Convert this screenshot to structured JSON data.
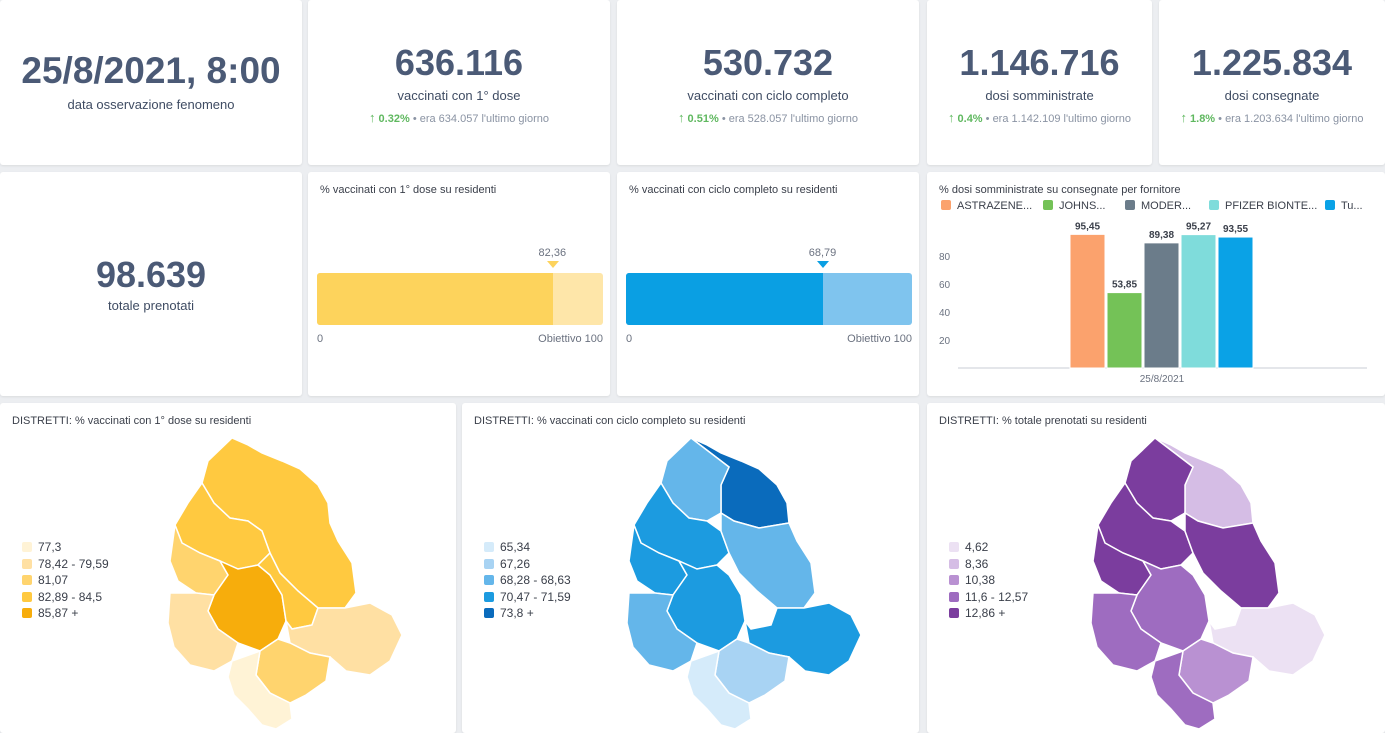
{
  "kpis": {
    "date": {
      "value": "25/8/2021, 8:00",
      "label": "data osservazione fenomeno"
    },
    "first_dose": {
      "value": "636.116",
      "label": "vaccinati con 1° dose",
      "pct": "0.32%",
      "prev": "• era 634.057  l'ultimo giorno"
    },
    "full_cycle": {
      "value": "530.732",
      "label": "vaccinati con ciclo completo",
      "pct": "0.51%",
      "prev": "• era 528.057  l'ultimo giorno"
    },
    "administered": {
      "value": "1.146.716",
      "label": "dosi somministrate",
      "pct": "0.4%",
      "prev": "• era 1.142.109  l'ultimo giorno"
    },
    "delivered": {
      "value": "1.225.834",
      "label": "dosi consegnate",
      "pct": "1.8%",
      "prev": "• era 1.203.634  l'ultimo giorno"
    },
    "bookings": {
      "value": "98.639",
      "label": "totale prenotati"
    }
  },
  "progress": {
    "first_dose": {
      "title": "% vaccinati con 1° dose su residenti",
      "value": 82.36,
      "value_label": "82,36",
      "min_label": "0",
      "goal_label": "Obiettivo 100",
      "color_fill": "#fdd35c",
      "color_bg": "#fee6a9"
    },
    "full_cycle": {
      "title": "% vaccinati con ciclo completo su residenti",
      "value": 68.79,
      "value_label": "68,79",
      "min_label": "0",
      "goal_label": "Obiettivo 100",
      "color_fill": "#0a9fe3",
      "color_bg": "#7fc4ee"
    }
  },
  "chart_data": {
    "type": "bar",
    "title": "% dosi somministrate su consegnate per fornitore",
    "categories": [
      "25/8/2021"
    ],
    "series": [
      {
        "name": "ASTRAZENE...",
        "values": [
          95.45
        ],
        "label": "95,45",
        "color": "#fba26d"
      },
      {
        "name": "JOHNS...",
        "values": [
          53.85
        ],
        "label": "53,85",
        "color": "#74c257"
      },
      {
        "name": "MODER...",
        "values": [
          89.38
        ],
        "label": "89,38",
        "color": "#6b7c8a"
      },
      {
        "name": "PFIZER BIONTE...",
        "values": [
          95.27
        ],
        "label": "95,27",
        "color": "#7fdcdb"
      },
      {
        "name": "Tu...",
        "values": [
          93.55
        ],
        "label": "93,55",
        "color": "#0aa2e6"
      }
    ],
    "yticks": [
      "20",
      "40",
      "60",
      "80"
    ],
    "ylim": [
      0,
      100
    ],
    "legend": "top",
    "grid": false
  },
  "maps": {
    "first_dose": {
      "title": "DISTRETTI: % vaccinati con 1° dose su residenti",
      "legend": [
        {
          "label": "77,3",
          "color": "#fff3d6"
        },
        {
          "label": "78,42 - 79,59",
          "color": "#ffe0a3"
        },
        {
          "label": "81,07",
          "color": "#ffd46e"
        },
        {
          "label": "82,89 - 84,5",
          "color": "#ffc940"
        },
        {
          "label": "85,87 +",
          "color": "#f7ad0c"
        }
      ]
    },
    "full_cycle": {
      "title": "DISTRETTI: % vaccinati con ciclo completo su residenti",
      "legend": [
        {
          "label": "65,34",
          "color": "#d5ebfa"
        },
        {
          "label": "67,26",
          "color": "#a8d3f3"
        },
        {
          "label": "68,28 - 68,63",
          "color": "#64b6ea"
        },
        {
          "label": "70,47 - 71,59",
          "color": "#1c9be0"
        },
        {
          "label": "73,8 +",
          "color": "#0a6bbc"
        }
      ]
    },
    "bookings": {
      "title": "DISTRETTI: % totale prenotati su residenti",
      "legend": [
        {
          "label": "4,62",
          "color": "#ece1f3"
        },
        {
          "label": "8,36",
          "color": "#d5bde5"
        },
        {
          "label": "10,38",
          "color": "#b991d2"
        },
        {
          "label": "11,6 - 12,57",
          "color": "#9e6cc0"
        },
        {
          "label": "12,86 +",
          "color": "#7b3d9e"
        }
      ]
    }
  }
}
